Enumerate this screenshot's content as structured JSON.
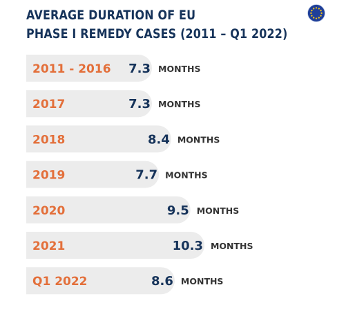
{
  "title_lines": [
    "AVERAGE DURATION OF EU",
    "PHASE I REMEDY CASES (2011 – Q1 2022)"
  ],
  "colors": {
    "title": "#16335a",
    "category": "#e36f3a",
    "value": "#16335a",
    "unit": "#333333",
    "bar": "#ececec",
    "flag_blue": "#1f3f99",
    "flag_stars": "#f5c518"
  },
  "icons": {
    "flag": "eu-flag-icon"
  },
  "chart_data": {
    "type": "bar",
    "orientation": "horizontal",
    "title": "AVERAGE DURATION OF EU PHASE I REMEDY CASES (2011 – Q1 2022)",
    "categories": [
      "2011 - 2016",
      "2017",
      "2018",
      "2019",
      "2020",
      "2021",
      "Q1 2022"
    ],
    "values": [
      7.3,
      7.3,
      8.4,
      7.7,
      9.5,
      10.3,
      8.6
    ],
    "value_labels": [
      "7.3",
      "7.3",
      "8.4",
      "7.7",
      "9.5",
      "10.3",
      "8.6"
    ],
    "unit": "MONTHS",
    "grid": false,
    "legend": "none"
  }
}
